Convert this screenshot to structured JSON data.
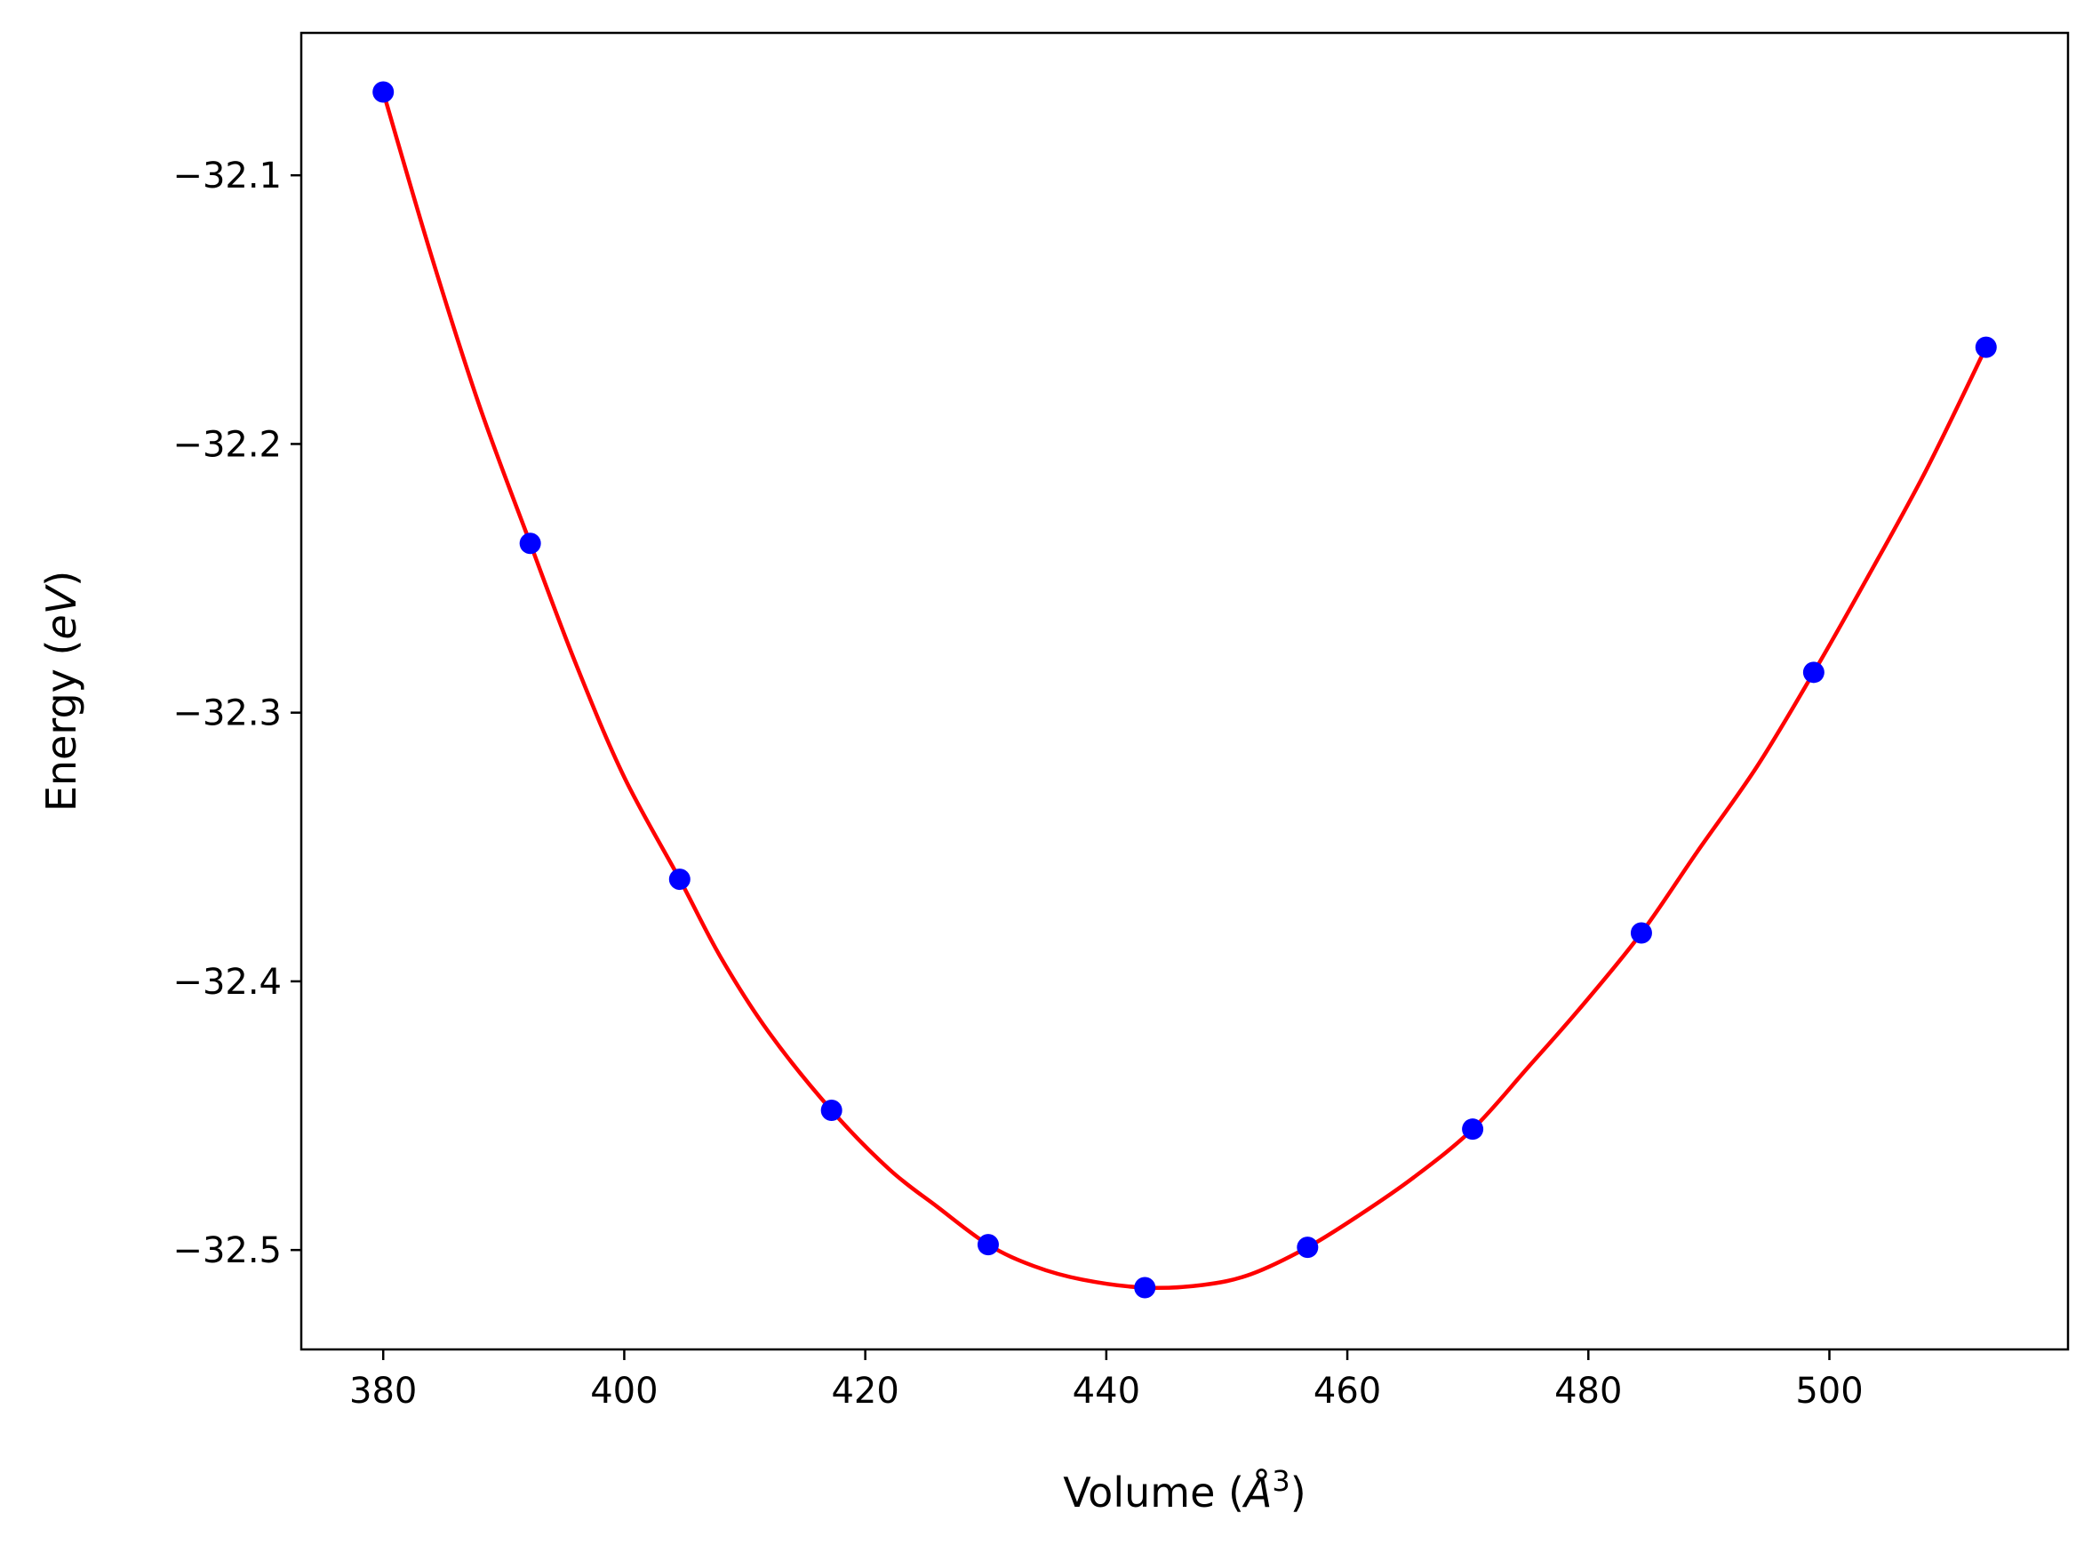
{
  "chart_data": {
    "type": "line",
    "xlabel": "Volume (",
    "xlabel_symbol": "Å",
    "xlabel_sup": "3",
    "xlabel_close": ")",
    "ylabel": "Energy (",
    "ylabel_symbol": "eV",
    "ylabel_close": ")",
    "xlim": [
      373.2,
      519.8
    ],
    "ylim": [
      -32.537,
      -32.047
    ],
    "xticks": [
      380,
      400,
      420,
      440,
      460,
      480,
      500
    ],
    "xtick_labels": [
      "380",
      "400",
      "420",
      "440",
      "460",
      "480",
      "500"
    ],
    "yticks": [
      -32.1,
      -32.2,
      -32.3,
      -32.4,
      -32.5
    ],
    "ytick_labels": [
      "−32.1",
      "−32.2",
      "−32.3",
      "−32.4",
      "−32.5"
    ],
    "grid": false,
    "series": [
      {
        "kind": "fit-curve",
        "color": "#ff0000",
        "x": [
          380.0,
          384.0,
          388.0,
          392.2,
          396.0,
          400.0,
          404.6,
          408.0,
          412.0,
          417.2,
          422.0,
          426.0,
          430.2,
          434.0,
          438.0,
          443.2,
          448.0,
          452.0,
          456.7,
          461.0,
          465.5,
          470.4,
          475.0,
          479.5,
          484.4,
          489.0,
          494.0,
          498.7,
          503.0,
          508.0,
          513.0
        ],
        "y": [
          -32.069,
          -32.13,
          -32.186,
          -32.237,
          -32.282,
          -32.324,
          -32.362,
          -32.391,
          -32.419,
          -32.448,
          -32.47,
          -32.484,
          -32.498,
          -32.506,
          -32.511,
          -32.514,
          -32.513,
          -32.509,
          -32.499,
          -32.487,
          -32.473,
          -32.455,
          -32.432,
          -32.409,
          -32.382,
          -32.352,
          -32.32,
          -32.285,
          -32.251,
          -32.21,
          -32.164
        ]
      },
      {
        "kind": "points",
        "color": "#0000ff",
        "x": [
          380.0,
          392.2,
          404.6,
          417.2,
          430.2,
          443.2,
          456.7,
          470.4,
          484.4,
          498.7,
          513.0
        ],
        "y": [
          -32.069,
          -32.237,
          -32.362,
          -32.448,
          -32.498,
          -32.514,
          -32.499,
          -32.455,
          -32.382,
          -32.285,
          -32.164
        ]
      }
    ]
  }
}
